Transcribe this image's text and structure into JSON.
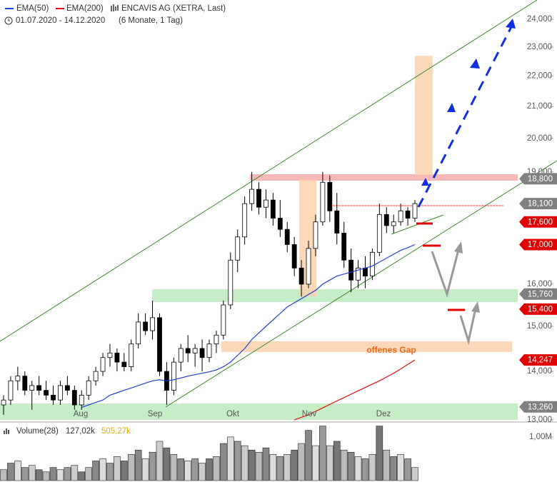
{
  "chart_data": {
    "type": "candlestick",
    "title": "ENCAVIS AG (XETRA, Last)",
    "subtitle": "01.07.2020 - 14.12.2020",
    "period": "(6 Monate, 1 Tag)",
    "log_scale": true,
    "ylim": [
      12.97,
      24.72
    ],
    "yticks": [
      {
        "value": 13,
        "label": "13,000"
      },
      {
        "value": 14,
        "label": "14,000"
      },
      {
        "value": 15,
        "label": "15,000"
      },
      {
        "value": 16,
        "label": "16,000"
      },
      {
        "value": 19,
        "label": "19,000"
      },
      {
        "value": 20,
        "label": "20,000"
      },
      {
        "value": 21,
        "label": "21,000"
      },
      {
        "value": 22,
        "label": "22,000"
      },
      {
        "value": 23,
        "label": "23,000"
      },
      {
        "value": 24,
        "label": "24,000"
      }
    ],
    "months": [
      "Aug",
      "Sep",
      "Okt",
      "Nov",
      "Dez"
    ],
    "open": [
      13.3,
      13.4,
      13.8,
      13.9,
      13.6,
      13.7,
      13.6,
      13.5,
      13.4,
      13.7,
      13.6,
      13.3,
      13.5,
      13.8,
      14.0,
      14.3,
      14.4,
      14.2,
      14.1,
      14.6,
      15.1,
      14.9,
      15.2,
      14.0,
      13.6,
      14.2,
      14.5,
      14.4,
      14.5,
      14.3,
      14.6,
      14.8,
      15.5,
      16.6,
      17.2,
      18.1,
      18.5,
      18.0,
      18.2,
      17.7,
      17.4,
      17.0,
      16.4,
      16.0,
      16.9,
      17.6,
      18.7,
      17.9,
      17.3,
      16.6,
      16.1,
      16.4,
      16.2,
      16.8,
      17.8,
      17.5,
      17.6,
      17.9,
      17.7
    ],
    "high": [
      13.5,
      13.9,
      14.1,
      14.0,
      13.8,
      13.9,
      13.8,
      13.7,
      13.8,
      13.9,
      13.7,
      13.6,
      13.9,
      14.1,
      14.4,
      14.6,
      14.5,
      14.4,
      14.7,
      15.3,
      15.3,
      15.6,
      15.3,
      14.2,
      14.3,
      14.6,
      14.8,
      14.6,
      14.7,
      14.7,
      14.9,
      15.6,
      16.8,
      17.4,
      18.3,
      19.0,
      18.7,
      18.5,
      18.4,
      18.2,
      17.6,
      17.2,
      16.6,
      17.1,
      17.8,
      19.0,
      18.9,
      18.4,
      17.6,
      16.9,
      16.6,
      16.7,
      16.9,
      18.1,
      18.0,
      17.8,
      18.1,
      18.0,
      18.2
    ],
    "low": [
      13.1,
      13.3,
      13.6,
      13.5,
      13.2,
      13.5,
      13.4,
      13.3,
      13.3,
      13.5,
      13.2,
      13.2,
      13.4,
      13.7,
      13.9,
      14.1,
      14.0,
      14.0,
      14.0,
      14.5,
      14.8,
      14.7,
      13.9,
      13.3,
      13.5,
      14.0,
      14.2,
      14.1,
      14.0,
      14.2,
      14.4,
      14.7,
      15.4,
      16.3,
      17.0,
      17.9,
      17.8,
      17.7,
      17.5,
      17.2,
      16.8,
      16.2,
      15.7,
      15.9,
      16.7,
      17.5,
      17.6,
      17.0,
      16.4,
      15.8,
      15.9,
      15.9,
      16.1,
      16.7,
      17.3,
      17.3,
      17.5,
      17.5,
      17.6
    ],
    "close": [
      13.4,
      13.8,
      13.9,
      13.6,
      13.7,
      13.6,
      13.5,
      13.4,
      13.7,
      13.6,
      13.3,
      13.5,
      13.8,
      14.0,
      14.3,
      14.4,
      14.2,
      14.1,
      14.6,
      15.1,
      14.9,
      15.2,
      14.0,
      13.6,
      14.2,
      14.5,
      14.4,
      14.5,
      14.3,
      14.6,
      14.8,
      15.5,
      16.6,
      17.2,
      18.1,
      18.5,
      18.0,
      18.2,
      17.7,
      17.4,
      17.0,
      16.4,
      16.0,
      16.9,
      17.6,
      18.7,
      17.9,
      17.3,
      16.6,
      16.1,
      16.4,
      16.2,
      16.8,
      17.8,
      17.5,
      17.6,
      17.9,
      17.7,
      18.1
    ],
    "series": [
      {
        "name": "EMA(50)",
        "color": "#1f3fd6",
        "values": [
          null,
          null,
          null,
          null,
          null,
          null,
          null,
          null,
          null,
          null,
          null,
          13.25,
          13.3,
          13.35,
          13.4,
          13.5,
          13.55,
          13.6,
          13.65,
          13.7,
          13.75,
          13.8,
          13.82,
          13.8,
          13.82,
          13.86,
          13.9,
          13.93,
          13.96,
          13.99,
          14.03,
          14.1,
          14.2,
          14.35,
          14.5,
          14.7,
          14.85,
          15.0,
          15.15,
          15.3,
          15.45,
          15.55,
          15.65,
          15.75,
          15.85,
          16.0,
          16.1,
          16.2,
          16.25,
          16.3,
          16.35,
          16.4,
          16.45,
          16.55,
          16.65,
          16.75,
          16.85,
          16.92,
          17.0
        ]
      },
      {
        "name": "EMA(200)",
        "color": "#e01010",
        "values": [
          null,
          null,
          null,
          null,
          null,
          null,
          null,
          null,
          null,
          null,
          null,
          null,
          null,
          null,
          null,
          null,
          null,
          null,
          null,
          null,
          null,
          null,
          null,
          null,
          null,
          null,
          null,
          null,
          null,
          null,
          null,
          null,
          null,
          null,
          null,
          null,
          null,
          null,
          null,
          null,
          null,
          13.0,
          13.05,
          13.1,
          13.17,
          13.24,
          13.31,
          13.38,
          13.45,
          13.52,
          13.59,
          13.66,
          13.73,
          13.8,
          13.88,
          13.96,
          14.05,
          14.15,
          14.247
        ]
      }
    ],
    "levels": [
      {
        "value": 18.8,
        "label": "18,800",
        "color": "#808080"
      },
      {
        "value": 18.1,
        "label": "18,100",
        "color": "#808080"
      },
      {
        "value": 17.6,
        "label": "17,600",
        "color": "#e00000"
      },
      {
        "value": 17.0,
        "label": "17,000",
        "color": "#e00000"
      },
      {
        "value": 15.76,
        "label": "15,760",
        "color": "#808080"
      },
      {
        "value": 15.4,
        "label": "15,400",
        "color": "#e00000"
      },
      {
        "value": 14.247,
        "label": "14,247",
        "color": "#e00000"
      },
      {
        "value": 13.26,
        "label": "13,260",
        "color": "#808080"
      }
    ],
    "annotation": "offenes Gap",
    "volume_label": "Volume(28)",
    "volume_current": "127,02k",
    "volume_average": "505,27k",
    "volume": [
      0.25,
      0.4,
      0.45,
      0.3,
      0.35,
      0.25,
      0.2,
      0.3,
      0.25,
      0.3,
      0.35,
      0.2,
      0.3,
      0.45,
      0.5,
      0.4,
      0.55,
      0.45,
      0.6,
      0.7,
      0.5,
      0.65,
      0.9,
      0.75,
      0.6,
      0.5,
      0.45,
      0.5,
      0.4,
      0.5,
      0.55,
      0.85,
      1.0,
      0.9,
      0.8,
      0.7,
      0.65,
      0.75,
      0.6,
      0.55,
      0.6,
      0.7,
      0.85,
      1.15,
      0.8,
      1.25,
      0.8,
      0.9,
      0.7,
      0.65,
      0.55,
      0.5,
      0.6,
      1.25,
      0.7,
      0.55,
      0.6,
      0.5,
      0.3
    ],
    "vol_ylim": [
      0,
      1.26
    ],
    "vol_yticks": [
      {
        "value": 1,
        "label": "1,00M"
      }
    ]
  }
}
